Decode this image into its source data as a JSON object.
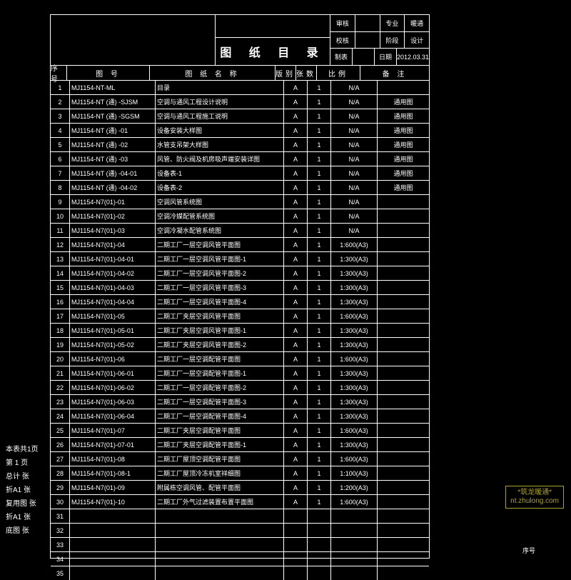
{
  "title": "图 纸 目 录",
  "header_right": [
    [
      "审核",
      "",
      "专业",
      "暖通"
    ],
    [
      "校核",
      "",
      "阶段",
      "设计"
    ],
    [
      "制表",
      "",
      "日期",
      "2012.03.31"
    ]
  ],
  "columns": [
    "序号",
    "图    号",
    "图 纸 名 称",
    "版别",
    "张数",
    "比例",
    "备  注"
  ],
  "rows": [
    [
      "1",
      "MJ1154-NT-ML",
      "目录",
      "A",
      "1",
      "N/A",
      ""
    ],
    [
      "2",
      "MJ1154-NT (通) -SJSM",
      "空调与通风工程设计说明",
      "A",
      "1",
      "N/A",
      "通用图"
    ],
    [
      "3",
      "MJ1154-NT (通) -SGSM",
      "空调与通风工程施工说明",
      "A",
      "1",
      "N/A",
      "通用图"
    ],
    [
      "4",
      "MJ1154-NT (通) -01",
      "设备安装大样图",
      "A",
      "1",
      "N/A",
      "通用图"
    ],
    [
      "5",
      "MJ1154-NT (通) -02",
      "水管支吊架大样图",
      "A",
      "1",
      "N/A",
      "通用图"
    ],
    [
      "6",
      "MJ1154-NT (通) -03",
      "风管、防火阀及机房吸声端安装详图",
      "A",
      "1",
      "N/A",
      "通用图"
    ],
    [
      "7",
      "MJ1154-NT (通) -04-01",
      "设备表-1",
      "A",
      "1",
      "N/A",
      "通用图"
    ],
    [
      "8",
      "MJ1154-NT (通) -04-02",
      "设备表-2",
      "A",
      "1",
      "N/A",
      "通用图"
    ],
    [
      "9",
      "MJ1154-N7(01)-01",
      "空调风管系统图",
      "A",
      "1",
      "N/A",
      ""
    ],
    [
      "10",
      "MJ1154-N7(01)-02",
      "空调冷媒配管系统图",
      "A",
      "1",
      "N/A",
      ""
    ],
    [
      "11",
      "MJ1154-N7(01)-03",
      "空调冷凝水配管系统图",
      "A",
      "1",
      "N/A",
      ""
    ],
    [
      "12",
      "MJ1154-N7(01)-04",
      "二期工厂一层空调风管平面图",
      "A",
      "1",
      "1:600(A3)",
      ""
    ],
    [
      "13",
      "MJ1154-N7(01)-04-01",
      "二期工厂一层空调风管平面图-1",
      "A",
      "1",
      "1:300(A3)",
      ""
    ],
    [
      "14",
      "MJ1154-N7(01)-04-02",
      "二期工厂一层空调风管平面图-2",
      "A",
      "1",
      "1:300(A3)",
      ""
    ],
    [
      "15",
      "MJ1154-N7(01)-04-03",
      "二期工厂一层空调风管平面图-3",
      "A",
      "1",
      "1:300(A3)",
      ""
    ],
    [
      "16",
      "MJ1154-N7(01)-04-04",
      "二期工厂一层空调风管平面图-4",
      "A",
      "1",
      "1:300(A3)",
      ""
    ],
    [
      "17",
      "MJ1154-N7(01)-05",
      "二期工厂夹层空调风管平面图",
      "A",
      "1",
      "1:600(A3)",
      ""
    ],
    [
      "18",
      "MJ1154-N7(01)-05-01",
      "二期工厂夹层空调风管平面图-1",
      "A",
      "1",
      "1:300(A3)",
      ""
    ],
    [
      "19",
      "MJ1154-N7(01)-05-02",
      "二期工厂夹层空调风管平面图-2",
      "A",
      "1",
      "1:300(A3)",
      ""
    ],
    [
      "20",
      "MJ1154-N7(01)-06",
      "二期工厂一层空调配管平面图",
      "A",
      "1",
      "1:600(A3)",
      ""
    ],
    [
      "21",
      "MJ1154-N7(01)-06-01",
      "二期工厂一层空调配管平面图-1",
      "A",
      "1",
      "1:300(A3)",
      ""
    ],
    [
      "22",
      "MJ1154-N7(01)-06-02",
      "二期工厂一层空调配管平面图-2",
      "A",
      "1",
      "1:300(A3)",
      ""
    ],
    [
      "23",
      "MJ1154-N7(01)-06-03",
      "二期工厂一层空调配管平面图-3",
      "A",
      "1",
      "1:300(A3)",
      ""
    ],
    [
      "24",
      "MJ1154-N7(01)-06-04",
      "二期工厂一层空调配管平面图-4",
      "A",
      "1",
      "1:300(A3)",
      ""
    ],
    [
      "25",
      "MJ1154-N7(01)-07",
      "二期工厂夹层空调配管平面图",
      "A",
      "1",
      "1:600(A3)",
      ""
    ],
    [
      "26",
      "MJ1154-N7(01)-07-01",
      "二期工厂夹层空调配管平面图-1",
      "A",
      "1",
      "1:300(A3)",
      ""
    ],
    [
      "27",
      "MJ1154-N7(01)-08",
      "二期工厂屋顶空调配管平面图",
      "A",
      "1",
      "1:600(A3)",
      ""
    ],
    [
      "28",
      "MJ1154-N7(01)-08-1",
      "二期工厂屋顶冷冻机室祥细图",
      "A",
      "1",
      "1:100(A3)",
      ""
    ],
    [
      "29",
      "MJ1154-N7(01)-09",
      "附属栋空调风管、配管平面图",
      "A",
      "1",
      "1:200(A3)",
      ""
    ],
    [
      "30",
      "MJ1154-N7(01)-10",
      "二期工厂外气过滤装置布置平面图",
      "A",
      "1",
      "1:600(A3)",
      ""
    ],
    [
      "31",
      "",
      "",
      "",
      "",
      "",
      ""
    ],
    [
      "32",
      "",
      "",
      "",
      "",
      "",
      ""
    ],
    [
      "33",
      "",
      "",
      "",
      "",
      "",
      ""
    ],
    [
      "34",
      "",
      "",
      "",
      "",
      "",
      ""
    ],
    [
      "35",
      "",
      "",
      "",
      "",
      "",
      ""
    ]
  ],
  "side_labels": [
    "本表共1页",
    "第  1 页",
    "总计    张",
    "折A1    张",
    "复用图  张",
    "折A1    张",
    "底图    张"
  ],
  "watermark": {
    "line1": "*筑龙暖通*",
    "line2": "nt.zhulong.com"
  },
  "side_seq": "序号"
}
